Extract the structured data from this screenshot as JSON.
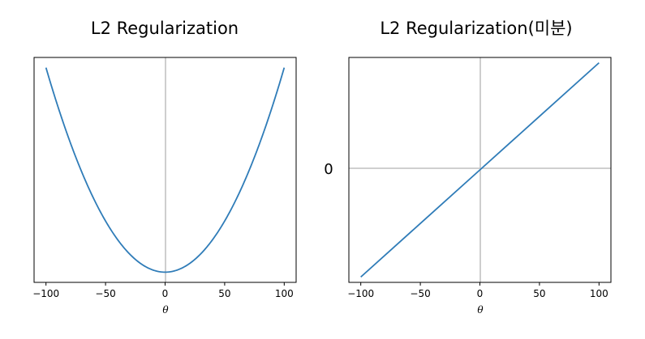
{
  "chart_data": [
    {
      "type": "line",
      "title": "L2 Regularization",
      "xlabel": "θ",
      "ylabel": "",
      "function": "theta^2",
      "x_ticks": [
        "−100",
        "−50",
        "0",
        "50",
        "100"
      ],
      "xlim": [
        -110,
        110
      ],
      "ylim": [
        -500,
        10500
      ],
      "vertical_zero_line": true,
      "series": [
        {
          "color": "#2f7cb8",
          "x": [
            -100,
            -90,
            -80,
            -70,
            -60,
            -50,
            -40,
            -30,
            -20,
            -10,
            0,
            10,
            20,
            30,
            40,
            50,
            60,
            70,
            80,
            90,
            100
          ],
          "y": [
            10000,
            8100,
            6400,
            4900,
            3600,
            2500,
            1600,
            900,
            400,
            100,
            0,
            100,
            400,
            900,
            1600,
            2500,
            3600,
            4900,
            6400,
            8100,
            10000
          ]
        }
      ]
    },
    {
      "type": "line",
      "title": "L2 Regularization(미분)",
      "xlabel": "θ",
      "ylabel": "",
      "function": "2*theta",
      "x_ticks": [
        "−100",
        "−50",
        "0",
        "50",
        "100"
      ],
      "y_tick_label": "0",
      "xlim": [
        -110,
        110
      ],
      "ylim": [
        -210,
        210
      ],
      "vertical_zero_line": true,
      "horizontal_zero_line": true,
      "series": [
        {
          "color": "#2f7cb8",
          "x": [
            -100,
            -50,
            0,
            50,
            100
          ],
          "y": [
            -200,
            -100,
            0,
            100,
            200
          ]
        }
      ]
    }
  ]
}
